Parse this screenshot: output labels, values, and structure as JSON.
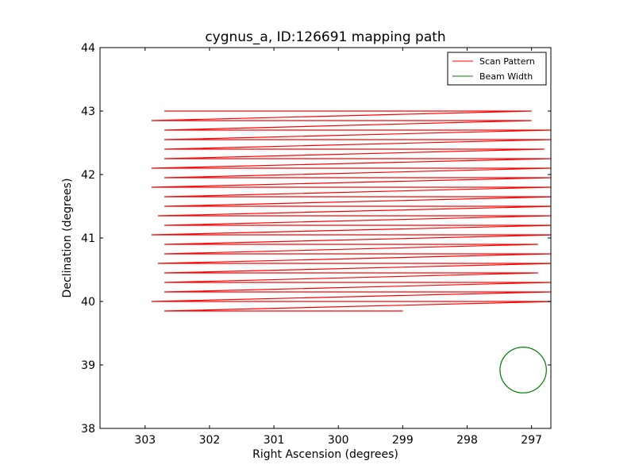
{
  "chart_data": {
    "type": "line",
    "title": "cygnus_a, ID:126691 mapping path",
    "xlabel": "Right Ascension (degrees)",
    "ylabel": "Declination (degrees)",
    "xlim": [
      303.7,
      296.7
    ],
    "ylim": [
      38,
      44
    ],
    "x_inverted": true,
    "xticks": [
      303,
      302,
      301,
      300,
      299,
      298,
      297
    ],
    "yticks": [
      38,
      39,
      40,
      41,
      42,
      43,
      44
    ],
    "grid": false,
    "legend_position": "top-right",
    "series": [
      {
        "name": "Scan Pattern",
        "color": "#ff0000",
        "style": "line",
        "x": [
          302.7,
          297.0,
          302.9,
          297.0,
          302.7,
          296.7,
          302.7,
          296.7,
          302.7,
          296.8,
          302.7,
          296.7,
          302.9,
          296.7,
          302.7,
          296.7,
          302.9,
          296.7,
          302.7,
          296.6,
          302.7,
          296.6,
          302.8,
          296.7,
          302.7,
          296.6,
          302.9,
          296.6,
          302.7,
          296.9,
          302.7,
          296.7,
          302.8,
          296.6,
          302.7,
          296.9,
          302.7,
          296.7,
          302.7,
          296.7,
          302.9,
          296.6,
          302.7,
          299.0
        ],
        "y": [
          43.0,
          43.0,
          42.85,
          42.85,
          42.7,
          42.7,
          42.55,
          42.55,
          42.4,
          42.4,
          42.25,
          42.25,
          42.1,
          42.1,
          41.95,
          41.95,
          41.8,
          41.8,
          41.65,
          41.65,
          41.5,
          41.5,
          41.35,
          41.35,
          41.2,
          41.2,
          41.05,
          41.05,
          40.9,
          40.9,
          40.75,
          40.75,
          40.6,
          40.6,
          40.45,
          40.45,
          40.3,
          40.3,
          40.15,
          40.15,
          40.0,
          40.0,
          39.85,
          39.85
        ]
      },
      {
        "name": "Beam Width",
        "color": "#008000",
        "style": "circle",
        "center": [
          297.13,
          38.92
        ],
        "radius": 0.36
      }
    ]
  }
}
